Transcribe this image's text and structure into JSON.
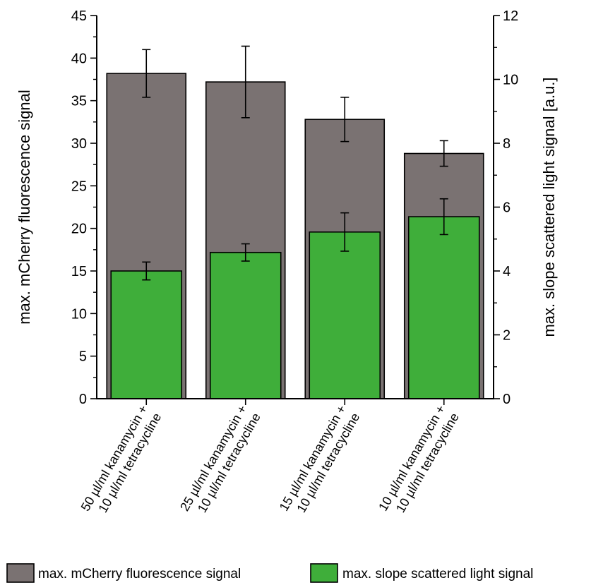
{
  "chart_data": {
    "type": "bar",
    "categories": [
      [
        "50 µl/ml kanamycin +",
        "10 µl/ml tetracycline"
      ],
      [
        "25 µl/ml kanamycin +",
        "10 µl/ml tetracycline"
      ],
      [
        "15 µl/ml kanamycin +",
        "10 µl/ml tetracycline"
      ],
      [
        "10 µl/ml kanamycin +",
        "10 µl/ml tetracycline"
      ]
    ],
    "series": [
      {
        "name": "max. mCherry fluorescence signal",
        "axis": "left",
        "color": "#7a7272",
        "values": [
          38.2,
          37.2,
          32.8,
          28.8
        ],
        "errors": [
          2.8,
          4.2,
          2.6,
          1.5
        ]
      },
      {
        "name": "max. slope scattered light signal",
        "axis": "right",
        "color": "#3fae3a",
        "values": [
          4.0,
          4.58,
          5.22,
          5.7
        ],
        "errors": [
          0.28,
          0.27,
          0.6,
          0.56
        ]
      }
    ],
    "ylabel_left": "max. mCherry fluorescence signal",
    "ylabel_right": "max. slope scattered light signal [a.u.]",
    "ylim_left": [
      0,
      45
    ],
    "ylim_right": [
      0,
      12
    ],
    "yticks_left": [
      "0",
      "5",
      "10",
      "15",
      "20",
      "25",
      "30",
      "35",
      "40",
      "45"
    ],
    "yticks_right": [
      "0",
      "2",
      "4",
      "6",
      "8",
      "10",
      "12"
    ],
    "grid": false,
    "legend_position": "bottom"
  },
  "legend": {
    "items": [
      {
        "label": "max. mCherry fluorescence signal",
        "color": "#7a7272"
      },
      {
        "label": "max. slope scattered light signal",
        "color": "#3fae3a"
      }
    ]
  }
}
